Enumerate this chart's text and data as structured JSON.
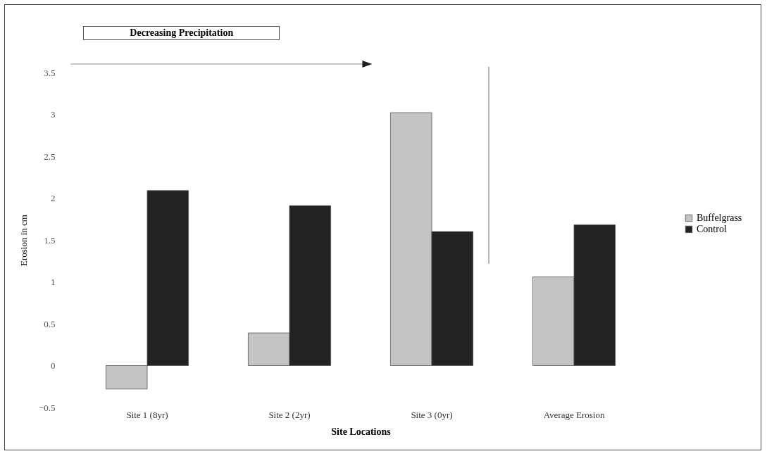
{
  "chart_data": {
    "type": "bar",
    "xlabel": "Site Locations",
    "ylabel": "Erosion in cm",
    "categories": [
      "Site 1 (8yr)",
      "Site 2 (2yr)",
      "Site 3 (0yr)",
      "Average Erosion"
    ],
    "series": [
      {
        "name": "Buffelgrass",
        "color": "#c4c4c4",
        "values": [
          -0.28,
          0.39,
          3.02,
          1.06
        ]
      },
      {
        "name": "Control",
        "color": "#222222",
        "values": [
          2.09,
          1.91,
          1.6,
          1.68
        ]
      }
    ],
    "ylim": [
      -0.5,
      3.5
    ],
    "yticks": [
      -0.5,
      0,
      0.5,
      1,
      1.5,
      2,
      2.5,
      3,
      3.5
    ],
    "grid": false,
    "legend": "right",
    "annotations": [
      "Decreasing Precipitation"
    ]
  }
}
